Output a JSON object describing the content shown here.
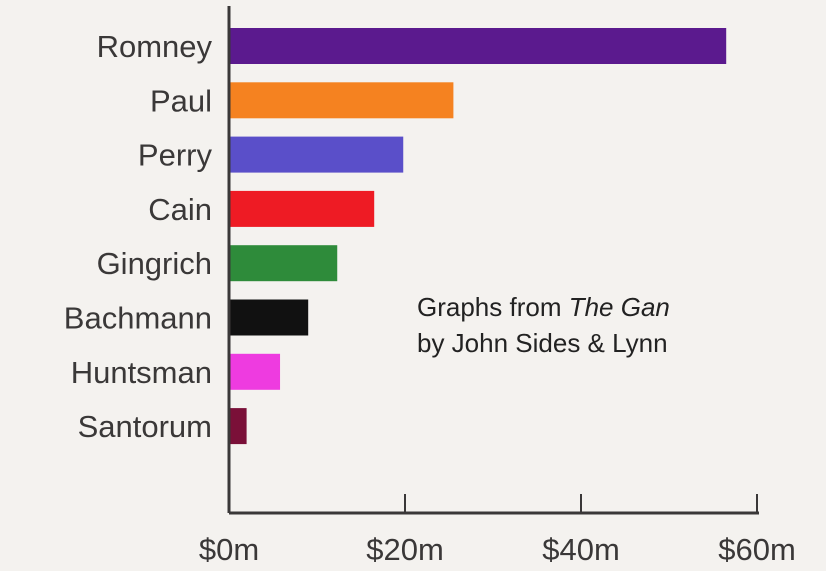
{
  "chart_data": {
    "type": "bar",
    "orientation": "horizontal",
    "categories": [
      "Romney",
      "Paul",
      "Perry",
      "Cain",
      "Gingrich",
      "Bachmann",
      "Huntsman",
      "Santorum"
    ],
    "values": [
      56.5,
      25.5,
      19.8,
      16.5,
      12.3,
      9.0,
      5.8,
      2.0
    ],
    "colors": [
      "#5b1a8e",
      "#f58220",
      "#5a4fc9",
      "#ee1b24",
      "#2e8b3a",
      "#111111",
      "#ee3be0",
      "#7a1038"
    ],
    "x_tick_labels": [
      "$0m",
      "$20m",
      "$40m",
      "$60m"
    ],
    "x_ticks": [
      0,
      20,
      40,
      60
    ],
    "xlim": [
      0,
      60
    ],
    "title": "",
    "xlabel": "",
    "ylabel": "",
    "grid": false
  },
  "annotation": {
    "prefix": "Graphs from ",
    "book": "The Gan",
    "line2": "by John Sides & Lynn"
  }
}
